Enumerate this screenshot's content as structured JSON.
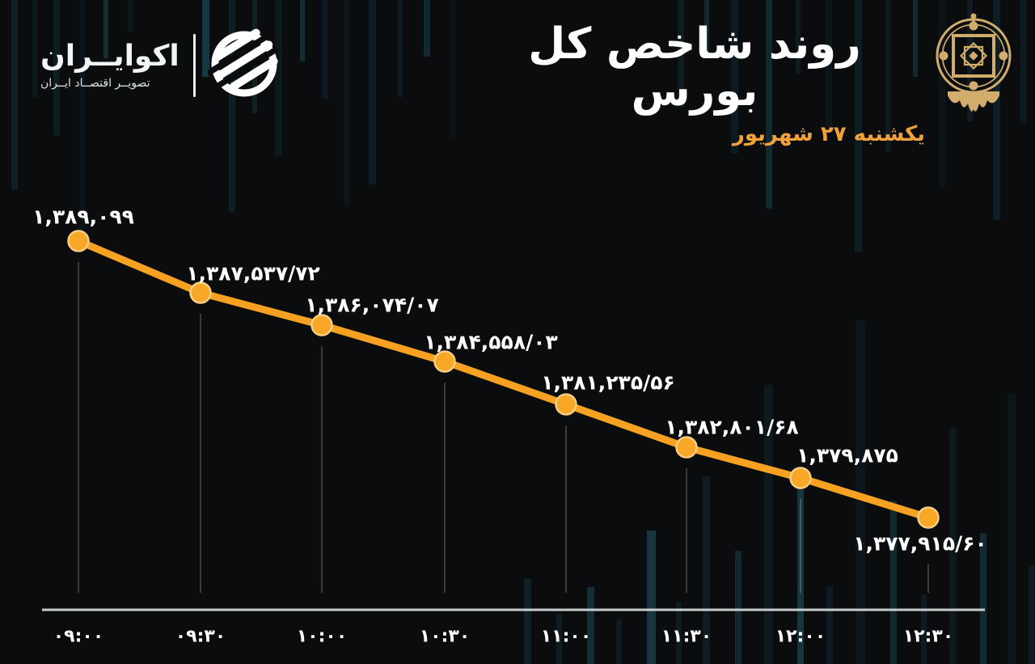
{
  "header": {
    "title": "روند شاخص کل بورس",
    "date": "یکشنبه ۲۷ شهریور"
  },
  "brand": {
    "name": "اکوایــران",
    "tagline": "تصویــر اقتصــاد ایــران"
  },
  "emblems": {
    "left_icon": "ecoiran-logo",
    "right_icon": "bourse-gold-emblem"
  },
  "colors": {
    "background": "#0A0C0D",
    "line": "#F6A122",
    "marker": "#F8A826",
    "marker_ring": "#F9CD84",
    "accent_gold": "#D2AC6B",
    "subtitle_orange": "#F1A13C",
    "axis": "#D8DCDC",
    "text": "#FFFFFF"
  },
  "chart_data": {
    "type": "line",
    "title": "روند شاخص کل بورس",
    "subtitle": "یکشنبه ۲۷ شهریور",
    "x": [
      "09:00",
      "09:30",
      "10:00",
      "10:30",
      "11:00",
      "11:30",
      "12:00",
      "12:30"
    ],
    "x_labels_fa": [
      "۰۹:۰۰",
      "۰۹:۳۰",
      "۱۰:۰۰",
      "۱۰:۳۰",
      "۱۱:۰۰",
      "۱۱:۳۰",
      "۱۲:۰۰",
      "۱۲:۳۰"
    ],
    "series": [
      {
        "name": "شاخص کل بورس",
        "values": [
          1389099,
          1387537.72,
          1386074.07,
          1384558.03,
          1381235.56,
          1382801.68,
          1379875,
          1377915.6
        ]
      }
    ],
    "point_labels_fa": [
      "۱,۳۸۹,۰۹۹",
      "۱,۳۸۷,۵۳۷/۷۲",
      "۱,۳۸۶,۰۷۴/۰۷",
      "۱,۳۸۴,۵۵۸/۰۳",
      "۱,۳۸۱,۲۳۵/۵۶",
      "۱,۳۸۲,۸۰۱/۶۸",
      "۱,۳۷۹,۸۷۵",
      "۱,۳۷۷,۹۱۵/۶۰"
    ],
    "ylim": [
      1376000,
      1390000
    ],
    "grid": false,
    "legend_position": "none",
    "line_color": "#F6A122"
  }
}
